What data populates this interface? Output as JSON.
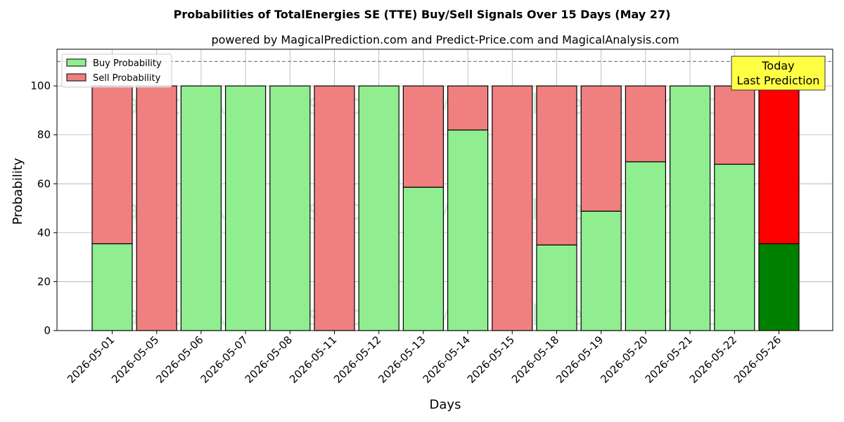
{
  "chart_data": {
    "type": "bar",
    "stacked": true,
    "title": "Probabilities of TotalEnergies SE (TTE) Buy/Sell Signals Over 15 Days (May 27)",
    "subtitle": "powered by MagicalPrediction.com and Predict-Price.com and MagicalAnalysis.com",
    "xlabel": "Days",
    "ylabel": "Probability",
    "ylim": [
      0,
      115
    ],
    "yticks": [
      0,
      20,
      40,
      60,
      80,
      100
    ],
    "reference_line": 110,
    "grid": true,
    "legend_position": "top-left",
    "categories": [
      "2026-05-01",
      "2026-05-05",
      "2026-05-06",
      "2026-05-07",
      "2026-05-08",
      "2026-05-11",
      "2026-05-12",
      "2026-05-13",
      "2026-05-14",
      "2026-05-15",
      "2026-05-18",
      "2026-05-19",
      "2026-05-20",
      "2026-05-21",
      "2026-05-22",
      "2026-05-26"
    ],
    "series": [
      {
        "name": "Buy Probability",
        "color": "#90ee90",
        "highlight_color": "#008000",
        "values": [
          35.5,
          0,
          100,
          100,
          100,
          0,
          100,
          58.6,
          82,
          0,
          35,
          48.8,
          69,
          100,
          68,
          35.5
        ]
      },
      {
        "name": "Sell Probability",
        "color": "#f08080",
        "highlight_color": "#ff0000",
        "values": [
          64.5,
          100,
          0,
          0,
          0,
          100,
          0,
          41.4,
          18,
          100,
          65,
          51.2,
          31,
          0,
          32,
          64.5
        ]
      }
    ],
    "annotation": {
      "lines": [
        "Today",
        "Last Prediction"
      ],
      "category_index": 15,
      "background": "#ffff44"
    },
    "watermarks": [
      "MagicalAnalysis.com",
      "MagicalPrediction.com"
    ]
  }
}
